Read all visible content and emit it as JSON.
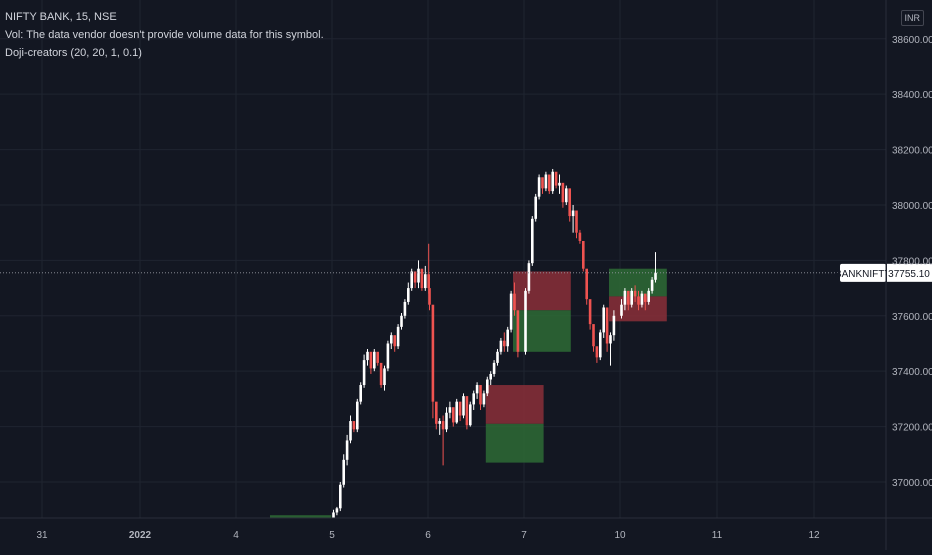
{
  "legend": {
    "symbol_line": "NIFTY BANK, 15, NSE",
    "vol_line": "Vol: The data vendor doesn't provide volume data for this symbol.",
    "indicator_line": "Doji-creators (20, 20, 1, 0.1)"
  },
  "currency_label": "INR",
  "price_tag": {
    "symbol": "BANKNIFTY",
    "price": "37755.10"
  },
  "colors": {
    "background": "#131722",
    "grid": "#1f2430",
    "up": "#ffffff",
    "down": "#ef5350",
    "zone_red": "#8b2f38",
    "zone_green": "#2e6b35"
  },
  "chart_data": {
    "type": "candlestick",
    "y_ticks": [
      37000,
      37200,
      37400,
      37600,
      37800,
      38000,
      38200,
      38400,
      38600
    ],
    "y_tick_labels": [
      "37000.00",
      "37200.00",
      "37400.00",
      "37600.00",
      "37800.00",
      "38000.00",
      "38200.00",
      "38400.00",
      "38600.00"
    ],
    "x_labels": [
      "31",
      "2022",
      "4",
      "5",
      "6",
      "7",
      "10",
      "11",
      "12"
    ],
    "ylim": [
      36870,
      38740
    ],
    "last_price": 37755.1,
    "sessions": [
      {
        "label": "31",
        "bars": []
      },
      {
        "label": "2022",
        "bars": []
      },
      {
        "label": "4",
        "bars": []
      },
      {
        "label": "5",
        "bars": [
          [
            36870,
            36900,
            36865,
            36890
          ],
          [
            36890,
            36910,
            36880,
            36905
          ],
          [
            36905,
            37000,
            36895,
            36990
          ],
          [
            36990,
            37100,
            36980,
            37080
          ],
          [
            37080,
            37170,
            37060,
            37150
          ],
          [
            37150,
            37240,
            37140,
            37220
          ],
          [
            37220,
            37210,
            37180,
            37190
          ],
          [
            37190,
            37300,
            37180,
            37290
          ],
          [
            37290,
            37360,
            37280,
            37350
          ],
          [
            37350,
            37460,
            37340,
            37440
          ],
          [
            37440,
            37480,
            37420,
            37470
          ],
          [
            37470,
            37420,
            37390,
            37410
          ],
          [
            37410,
            37480,
            37400,
            37470
          ],
          [
            37470,
            37440,
            37420,
            37430
          ],
          [
            37430,
            37360,
            37340,
            37350
          ],
          [
            37350,
            37420,
            37330,
            37410
          ],
          [
            37410,
            37510,
            37400,
            37500
          ],
          [
            37500,
            37540,
            37480,
            37530
          ],
          [
            37530,
            37510,
            37470,
            37490
          ],
          [
            37490,
            37570,
            37480,
            37560
          ],
          [
            37560,
            37610,
            37550,
            37600
          ],
          [
            37600,
            37660,
            37590,
            37650
          ],
          [
            37650,
            37720,
            37640,
            37700
          ],
          [
            37700,
            37770,
            37690,
            37760
          ],
          [
            37760,
            37730,
            37700,
            37720
          ],
          [
            37720,
            37800,
            37700,
            37770
          ],
          [
            37770,
            37720,
            37690,
            37700
          ],
          [
            37700,
            37780,
            37690,
            37750
          ],
          [
            37750,
            37860,
            37680,
            37700
          ]
        ]
      },
      {
        "label": "6",
        "bars": [
          [
            37700,
            37650,
            37620,
            37640
          ],
          [
            37640,
            37480,
            37230,
            37290
          ],
          [
            37290,
            37260,
            37190,
            37210
          ],
          [
            37210,
            37230,
            37170,
            37220
          ],
          [
            37220,
            37240,
            37060,
            37190
          ],
          [
            37190,
            37270,
            37180,
            37250
          ],
          [
            37250,
            37290,
            37230,
            37270
          ],
          [
            37270,
            37230,
            37200,
            37215
          ],
          [
            37215,
            37300,
            37210,
            37290
          ],
          [
            37290,
            37260,
            37220,
            37240
          ],
          [
            37240,
            37320,
            37230,
            37310
          ],
          [
            37310,
            37270,
            37190,
            37205
          ],
          [
            37205,
            37290,
            37200,
            37280
          ],
          [
            37280,
            37330,
            37260,
            37320
          ],
          [
            37320,
            37360,
            37300,
            37350
          ],
          [
            37350,
            37300,
            37260,
            37280
          ],
          [
            37280,
            37330,
            37270,
            37320
          ],
          [
            37320,
            37380,
            37310,
            37370
          ],
          [
            37370,
            37400,
            37350,
            37390
          ],
          [
            37390,
            37440,
            37380,
            37430
          ],
          [
            37430,
            37480,
            37420,
            37470
          ],
          [
            37470,
            37520,
            37460,
            37510
          ],
          [
            37510,
            37540,
            37470,
            37490
          ],
          [
            37490,
            37560,
            37470,
            37550
          ],
          [
            37550,
            37690,
            37540,
            37680
          ],
          [
            37680,
            37720,
            37600,
            37620
          ],
          [
            37620,
            37560,
            37450,
            37470
          ]
        ]
      },
      {
        "label": "7",
        "bars": [
          [
            37470,
            37700,
            37460,
            37690
          ],
          [
            37690,
            37800,
            37680,
            37790
          ],
          [
            37790,
            37960,
            37780,
            37950
          ],
          [
            37950,
            38040,
            37940,
            38030
          ],
          [
            38030,
            38110,
            38020,
            38100
          ],
          [
            38100,
            38080,
            38040,
            38060
          ],
          [
            38060,
            38120,
            38050,
            38110
          ],
          [
            38110,
            38060,
            38040,
            38050
          ],
          [
            38050,
            38130,
            38040,
            38120
          ],
          [
            38120,
            38090,
            38060,
            38070
          ],
          [
            38070,
            38110,
            38040,
            38080
          ],
          [
            38080,
            38050,
            37990,
            38010
          ],
          [
            38010,
            38070,
            38000,
            38060
          ],
          [
            38060,
            38010,
            37940,
            37960
          ],
          [
            37960,
            38000,
            37900,
            37980
          ],
          [
            37980,
            37930,
            37880,
            37900
          ],
          [
            37900,
            37910,
            37860,
            37870
          ],
          [
            37870,
            37780,
            37760,
            37770
          ],
          [
            37770,
            37700,
            37640,
            37660
          ],
          [
            37660,
            37590,
            37550,
            37570
          ],
          [
            37570,
            37510,
            37470,
            37490
          ],
          [
            37490,
            37460,
            37430,
            37450
          ],
          [
            37450,
            37550,
            37440,
            37540
          ],
          [
            37540,
            37640,
            37520,
            37630
          ],
          [
            37630,
            37580,
            37470,
            37500
          ],
          [
            37500,
            37540,
            37420,
            37530
          ],
          [
            37530,
            37620,
            37510,
            37600
          ]
        ]
      },
      {
        "label": "10",
        "bars": [
          [
            37600,
            37660,
            37590,
            37640
          ],
          [
            37640,
            37700,
            37620,
            37690
          ],
          [
            37690,
            37660,
            37620,
            37640
          ],
          [
            37640,
            37700,
            37630,
            37690
          ],
          [
            37690,
            37710,
            37650,
            37670
          ],
          [
            37670,
            37690,
            37620,
            37640
          ],
          [
            37640,
            37690,
            37630,
            37680
          ],
          [
            37680,
            37660,
            37620,
            37650
          ],
          [
            37650,
            37700,
            37640,
            37690
          ],
          [
            37690,
            37740,
            37680,
            37730
          ],
          [
            37730,
            37830,
            37720,
            37755.1
          ]
        ]
      },
      {
        "label": "11",
        "bars": []
      },
      {
        "label": "12",
        "bars": []
      }
    ],
    "zones": [
      {
        "color": "green",
        "session": "4",
        "from_bar": 10,
        "to_bar": 28,
        "top": 36880,
        "bottom": 36800
      },
      {
        "color": "red",
        "session": "6",
        "from_bar": 17,
        "to_bar": 34,
        "top": 37350,
        "bottom": 37210
      },
      {
        "color": "green",
        "session": "6",
        "from_bar": 17,
        "to_bar": 34,
        "top": 37210,
        "bottom": 37070
      },
      {
        "color": "red",
        "session": "6",
        "from_bar": 25,
        "to_bar": 42,
        "top": 37760,
        "bottom": 37620
      },
      {
        "color": "green",
        "session": "6",
        "from_bar": 25,
        "to_bar": 42,
        "top": 37620,
        "bottom": 37470
      },
      {
        "color": "green",
        "session": "7",
        "from_bar": 25,
        "to_bar": 42,
        "top": 37770,
        "bottom": 37670
      },
      {
        "color": "red",
        "session": "7",
        "from_bar": 25,
        "to_bar": 42,
        "top": 37670,
        "bottom": 37580
      }
    ]
  }
}
